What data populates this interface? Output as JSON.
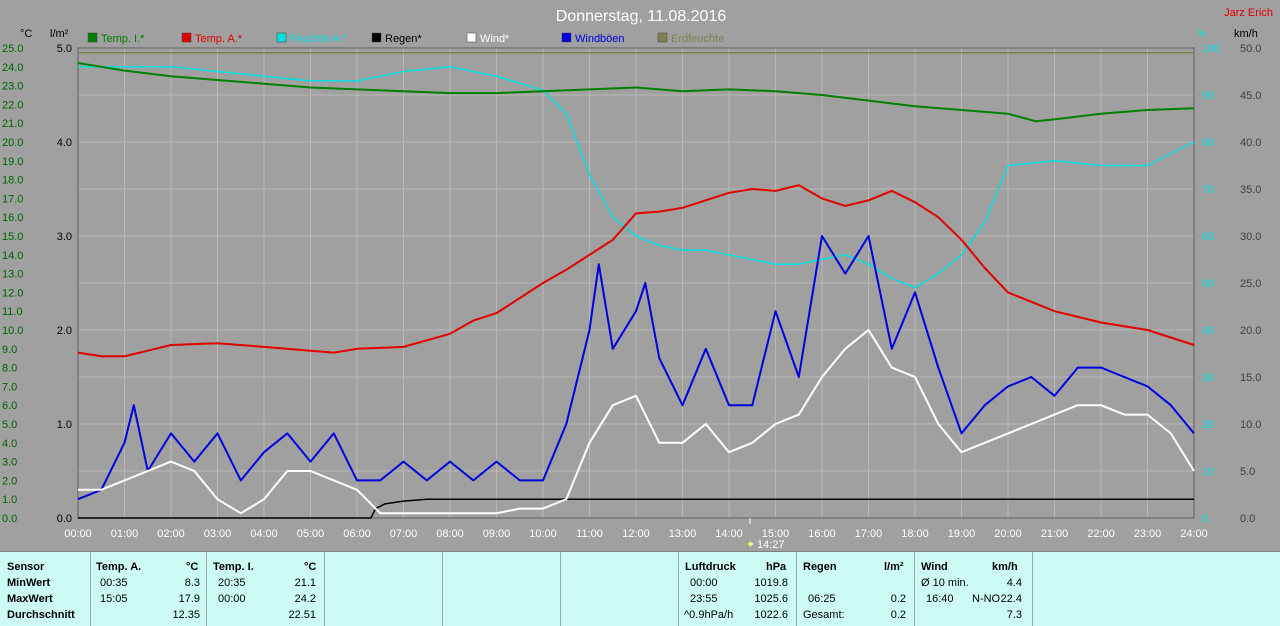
{
  "chart_data": {
    "type": "line",
    "title": "Donnerstag, 11.08.2016",
    "author": "Jarz Erich",
    "x_ticks": [
      "00:00",
      "01:00",
      "02:00",
      "03:00",
      "04:00",
      "05:00",
      "06:00",
      "07:00",
      "08:00",
      "09:00",
      "10:00",
      "11:00",
      "12:00",
      "13:00",
      "14:00",
      "15:00",
      "16:00",
      "17:00",
      "18:00",
      "19:00",
      "20:00",
      "21:00",
      "22:00",
      "23:00",
      "24:00"
    ],
    "x_range": [
      0,
      24
    ],
    "axes": {
      "temp": {
        "unit": "°C",
        "range": [
          0,
          25
        ],
        "ticks": [
          "0.0",
          "1.0",
          "2.0",
          "3.0",
          "4.0",
          "5.0",
          "6.0",
          "7.0",
          "8.0",
          "9.0",
          "10.0",
          "11.0",
          "12.0",
          "13.0",
          "14.0",
          "15.0",
          "16.0",
          "17.0",
          "18.0",
          "19.0",
          "20.0",
          "21.0",
          "22.0",
          "23.0",
          "24.0",
          "25.0"
        ]
      },
      "rain": {
        "unit": "l/m²",
        "range": [
          0,
          5
        ],
        "ticks": [
          "0.0",
          "1.0",
          "2.0",
          "3.0",
          "4.0",
          "5.0"
        ]
      },
      "humidity": {
        "unit": "%",
        "range": [
          0,
          100
        ],
        "ticks": [
          "0",
          "10",
          "20",
          "30",
          "40",
          "50",
          "60",
          "70",
          "80",
          "90",
          "100"
        ]
      },
      "wind": {
        "unit": "km/h",
        "range": [
          0,
          50
        ],
        "ticks": [
          "0.0",
          "5.0",
          "10.0",
          "15.0",
          "20.0",
          "25.0",
          "30.0",
          "35.0",
          "40.0",
          "45.0",
          "50.0"
        ]
      }
    },
    "series": [
      {
        "name": "Temp. I.*",
        "color": "#008000",
        "axis": "temp",
        "x": [
          0,
          0.5,
          1,
          2,
          3,
          4,
          5,
          6,
          7,
          8,
          9,
          10,
          11,
          12,
          13,
          14,
          15,
          16,
          17,
          18,
          19,
          20,
          20.6,
          21,
          22,
          23,
          24
        ],
        "y": [
          24.2,
          24.0,
          23.8,
          23.5,
          23.3,
          23.1,
          22.9,
          22.8,
          22.7,
          22.6,
          22.6,
          22.7,
          22.8,
          22.9,
          22.7,
          22.8,
          22.7,
          22.5,
          22.2,
          21.9,
          21.7,
          21.5,
          21.1,
          21.2,
          21.5,
          21.7,
          21.8
        ]
      },
      {
        "name": "Temp. A.*",
        "color": "#e00000",
        "axis": "temp",
        "x": [
          0,
          0.5,
          1,
          1.5,
          2,
          3,
          4,
          5,
          5.5,
          6,
          7,
          8,
          8.5,
          9,
          10,
          10.5,
          11,
          11.5,
          12,
          12.5,
          13,
          13.5,
          14,
          14.5,
          15,
          15.5,
          16,
          16.5,
          17,
          17.5,
          18,
          18.5,
          19,
          19.5,
          20,
          21,
          22,
          23,
          24
        ],
        "y": [
          8.8,
          8.6,
          8.6,
          8.9,
          9.2,
          9.3,
          9.1,
          8.9,
          8.8,
          9.0,
          9.1,
          9.8,
          10.5,
          10.9,
          12.5,
          13.2,
          14.0,
          14.8,
          16.2,
          16.3,
          16.5,
          16.9,
          17.3,
          17.5,
          17.4,
          17.7,
          17.0,
          16.6,
          16.9,
          17.4,
          16.8,
          16.0,
          14.8,
          13.3,
          12.0,
          11.0,
          10.4,
          10.0,
          9.2
        ]
      },
      {
        "name": "Feuchte A.*",
        "color": "#00e0e0",
        "axis": "humidity",
        "x": [
          0,
          1,
          2,
          3,
          4,
          5,
          6,
          7,
          8,
          9,
          10,
          10.5,
          11,
          11.5,
          12,
          12.5,
          13,
          13.5,
          14,
          14.5,
          15,
          15.5,
          16,
          16.5,
          17,
          17.5,
          18,
          18.5,
          19,
          19.5,
          20,
          21,
          22,
          23,
          24
        ],
        "y": [
          96,
          96,
          96,
          95,
          94,
          93,
          93,
          95,
          96,
          94,
          91,
          86,
          73,
          64,
          60,
          58,
          57,
          57,
          56,
          55,
          54,
          54,
          55,
          56,
          54,
          51,
          49,
          52,
          56,
          63,
          75,
          76,
          75,
          75,
          80
        ]
      },
      {
        "name": "Regen*",
        "color": "#000000",
        "axis": "rain",
        "x": [
          0,
          6.3,
          6.4,
          6.6,
          7,
          7.5,
          8,
          24
        ],
        "y": [
          0,
          0,
          0.1,
          0.15,
          0.18,
          0.2,
          0.2,
          0.2
        ]
      },
      {
        "name": "Wind*",
        "color": "#ffffff",
        "axis": "wind",
        "x": [
          0,
          0.5,
          1,
          1.5,
          2,
          2.5,
          3,
          3.5,
          4,
          4.5,
          5,
          5.5,
          6,
          6.5,
          7,
          7.5,
          8,
          8.5,
          9,
          9.5,
          10,
          10.5,
          11,
          11.5,
          12,
          12.5,
          13,
          13.5,
          14,
          14.5,
          15,
          15.5,
          16,
          16.5,
          17,
          17.5,
          18,
          18.5,
          19,
          19.5,
          20,
          20.5,
          21,
          21.5,
          22,
          22.5,
          23,
          23.5,
          24
        ],
        "y": [
          3,
          3,
          4,
          5,
          6,
          5,
          2,
          0.5,
          2,
          5,
          5,
          4,
          3,
          0.5,
          0.5,
          0.5,
          0.5,
          0.5,
          0.5,
          1,
          1,
          2,
          8,
          12,
          13,
          8,
          8,
          10,
          7,
          8,
          10,
          11,
          15,
          18,
          20,
          16,
          15,
          10,
          7,
          8,
          9,
          10,
          11,
          12,
          12,
          11,
          11,
          9,
          5
        ]
      },
      {
        "name": "Windböen",
        "color": "#0000e0",
        "axis": "wind",
        "x": [
          0,
          0.5,
          1,
          1.2,
          1.5,
          2,
          2.5,
          3,
          3.5,
          4,
          4.5,
          5,
          5.5,
          6,
          6.5,
          7,
          7.5,
          8,
          8.5,
          9,
          9.5,
          10,
          10.5,
          11,
          11.2,
          11.5,
          12,
          12.2,
          12.5,
          13,
          13.5,
          14,
          14.5,
          15,
          15.5,
          16,
          16.5,
          17,
          17.5,
          18,
          18.5,
          19,
          19.5,
          20,
          20.5,
          21,
          21.5,
          22,
          22.5,
          23,
          23.5,
          24
        ],
        "y": [
          2,
          3,
          8,
          12,
          5,
          9,
          6,
          9,
          4,
          7,
          9,
          6,
          9,
          4,
          4,
          6,
          4,
          6,
          4,
          6,
          4,
          4,
          10,
          20,
          27,
          18,
          22,
          25,
          17,
          12,
          18,
          12,
          12,
          22,
          15,
          30,
          26,
          30,
          18,
          24,
          16,
          9,
          12,
          14,
          15,
          13,
          16,
          16,
          15,
          14,
          12,
          9
        ]
      },
      {
        "name": "Erdfeuchte",
        "color": "#808050",
        "axis": "humidity",
        "x": [
          0,
          24
        ],
        "y": [
          99,
          99
        ]
      }
    ],
    "stats_labels": [
      "Sensor",
      "MinWert",
      "MaxWert",
      "Durchschnitt"
    ],
    "stats": {
      "temp_a": {
        "header": "Temp. A.",
        "unit": "°C",
        "min_time": "00:35",
        "min": "8.3",
        "max_time": "15:05",
        "max": "17.9",
        "avg": "12.35"
      },
      "temp_i": {
        "header": "Temp. I.",
        "unit": "°C",
        "min_time": "20:35",
        "min": "21.1",
        "max_time": "00:00",
        "max": "24.2",
        "avg": "22.51"
      },
      "pressure": {
        "header": "Luftdruck",
        "unit": "hPa",
        "r1_time": "00:00",
        "r1": "1019.8",
        "r2_time": "23:55",
        "r2": "1025.6",
        "r3_label": "^0.9hPa/h",
        "r3": "1022.6"
      },
      "rain": {
        "header": "Regen",
        "unit": "l/m²",
        "r2_time": "06:25",
        "r2": "0.2",
        "r3_label": "Gesamt:",
        "r3": "0.2"
      },
      "wind": {
        "header": "Wind",
        "unit": "km/h",
        "r1_label": "Ø 10 min.",
        "r1": "4.4",
        "r2_time": "16:40",
        "r2_dir": "N-NO",
        "r2": "22.4",
        "r3": "7.3"
      }
    },
    "marker": {
      "label": "14:27"
    },
    "colors": {
      "plot_bg": "#a0a0a0",
      "grid": "#b8b8b8",
      "panel_bg": "#ccfcf4"
    }
  }
}
